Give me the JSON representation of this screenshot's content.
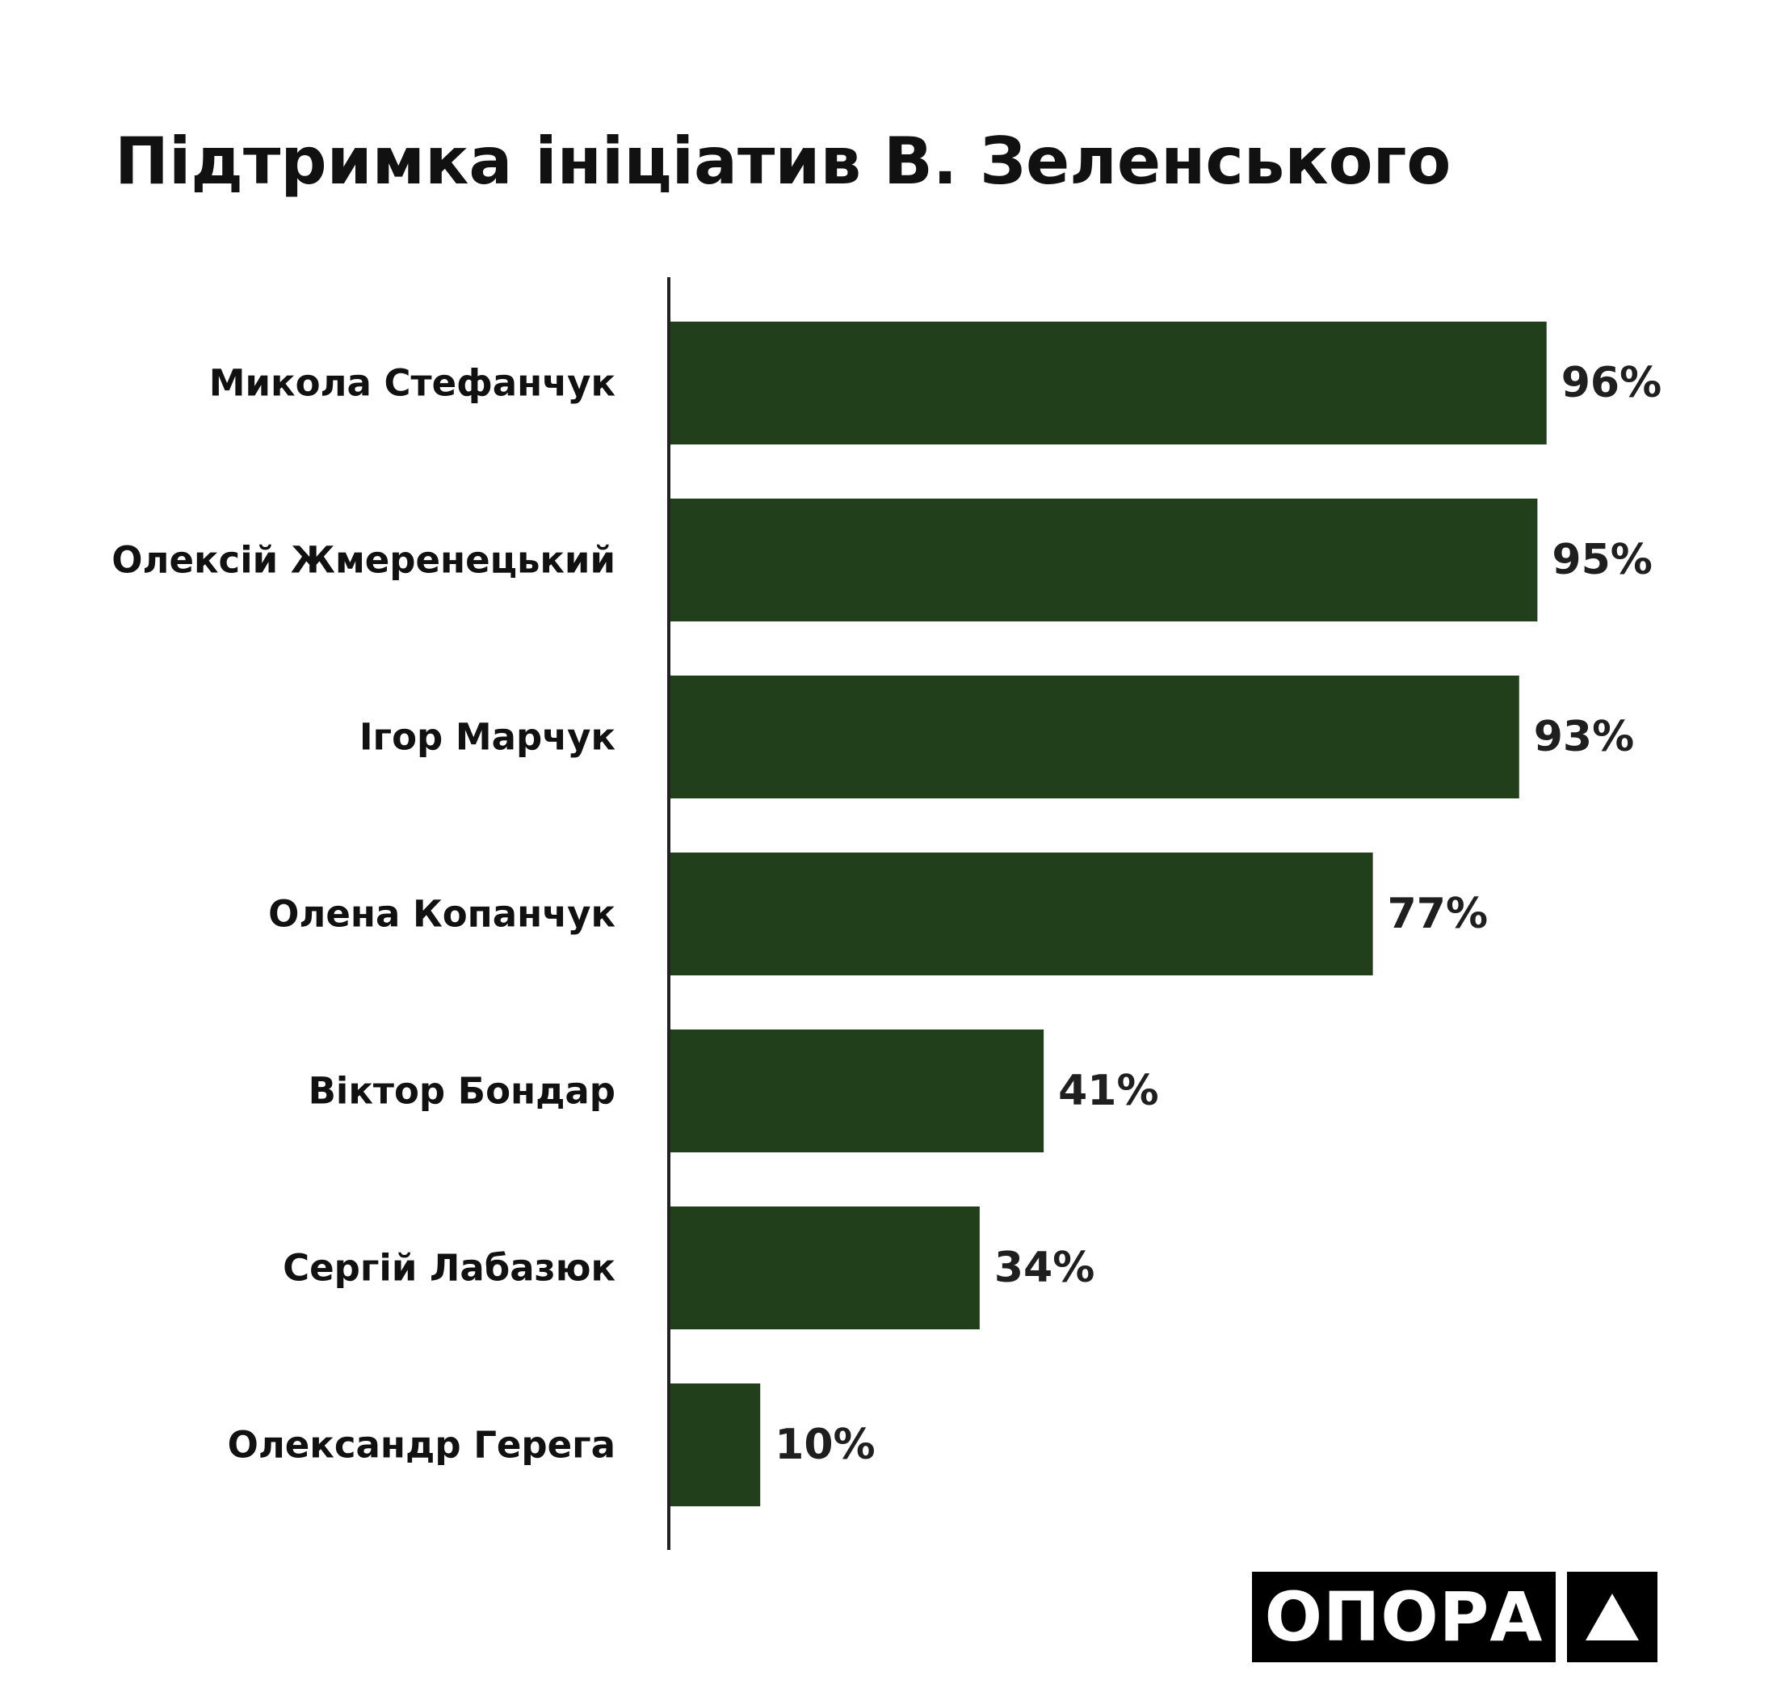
{
  "chart_data": {
    "type": "bar",
    "orientation": "horizontal",
    "title": "Підтримка ініціатив В. Зеленського",
    "categories": [
      "Микола Стефанчук",
      "Олексій Жмеренецький",
      "Ігор Марчук",
      "Олена Копанчук",
      "Віктор Бондар",
      "Сергій Лабазюк",
      "Олександр Герега"
    ],
    "values": [
      96,
      95,
      93,
      77,
      41,
      34,
      10
    ],
    "value_labels": [
      "96%",
      "95%",
      "93%",
      "77%",
      "41%",
      "34%",
      "10%"
    ],
    "xlim": [
      0,
      100
    ],
    "grid": false,
    "legend": "none",
    "bar_color": "#213f1b"
  },
  "logo": {
    "text": "ОПОРА",
    "mark": "triangle-icon"
  }
}
